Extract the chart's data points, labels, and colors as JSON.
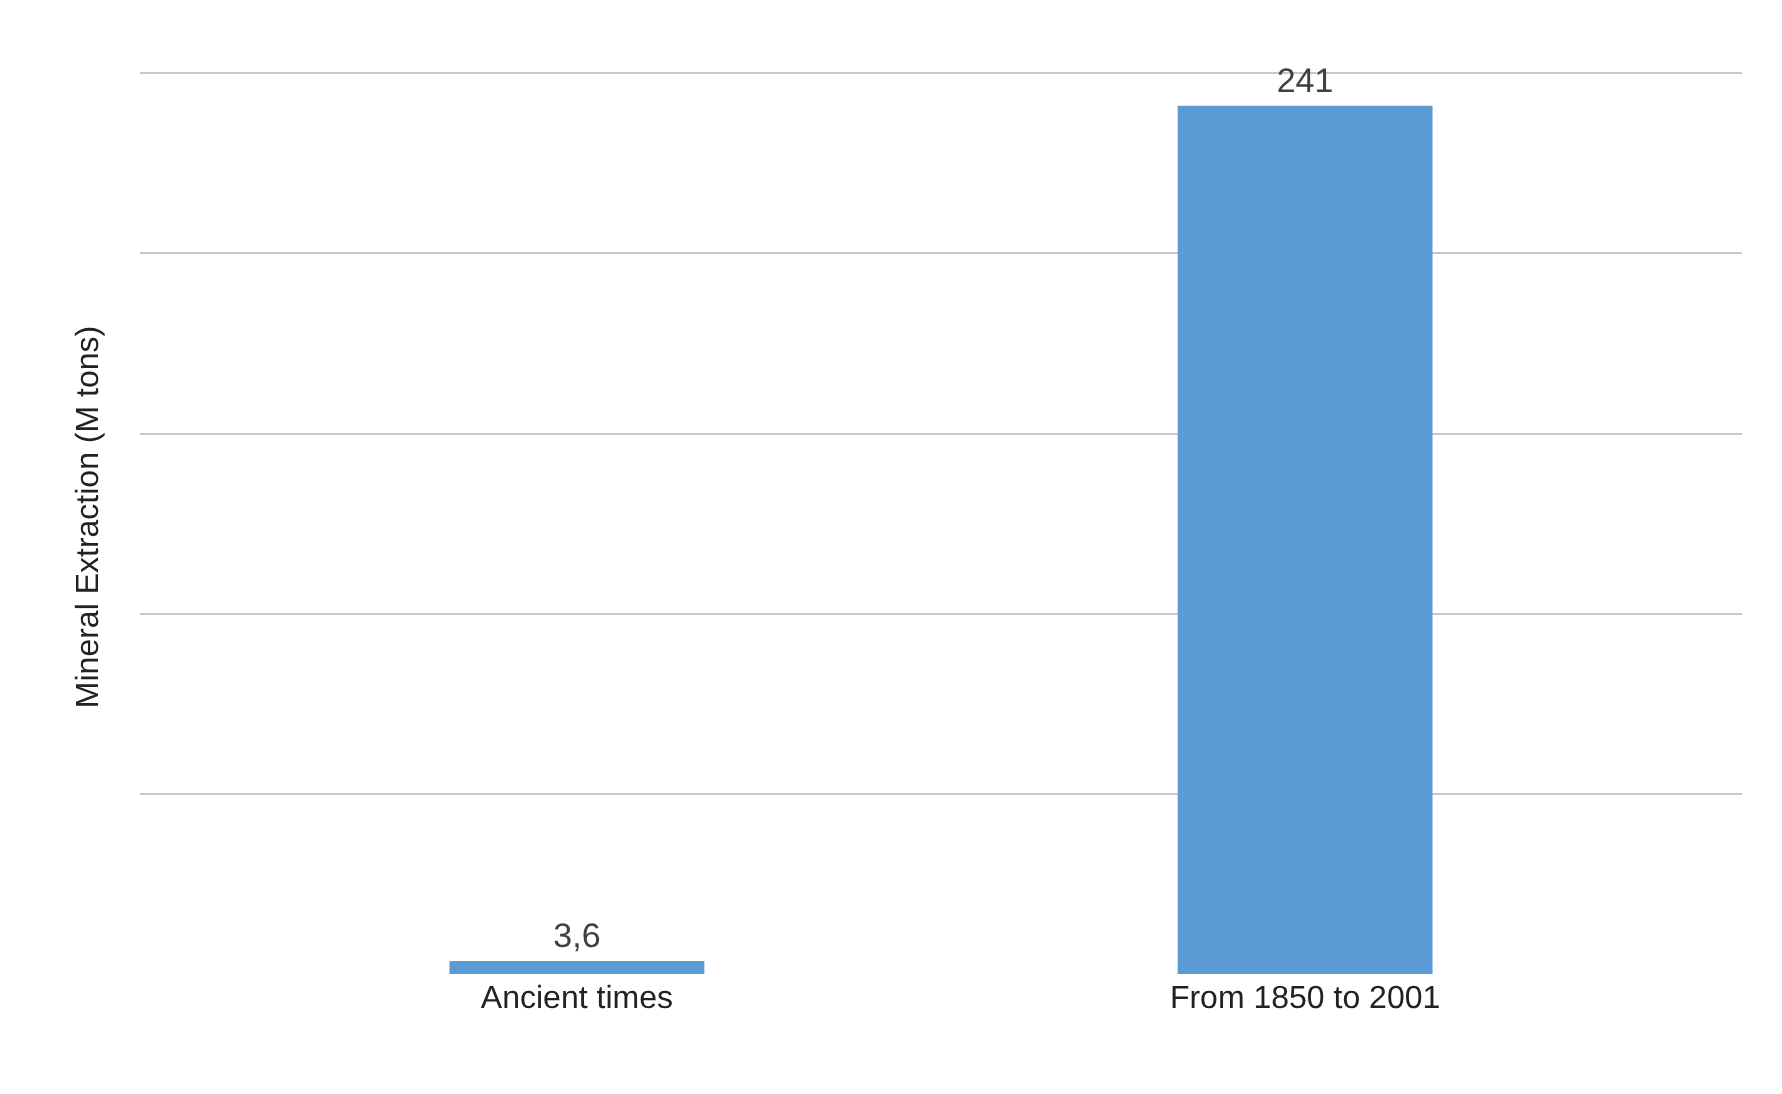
{
  "chart_data": {
    "type": "bar",
    "ylabel": "Mineral Extraction (M tons)",
    "categories": [
      "Ancient times",
      "From 1850 to 2001"
    ],
    "values": [
      3.6,
      241
    ],
    "value_labels": [
      "3,6",
      "241"
    ],
    "color": "#5b9bd5",
    "grid": "y",
    "tick_labels": "x"
  }
}
